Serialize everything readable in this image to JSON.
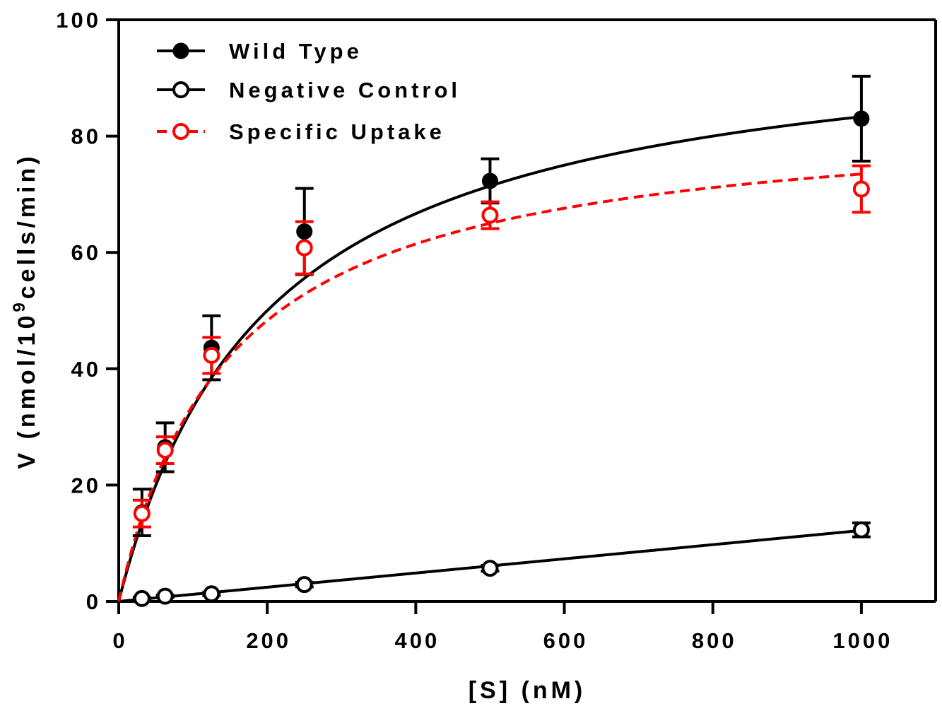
{
  "chart_data": {
    "type": "scatter",
    "title": "",
    "xlabel": "[S] (nM)",
    "ylabel_main": "V (nmol/10",
    "ylabel_sup": "9",
    "ylabel_rest": "cells/min)",
    "xlim": [
      0,
      1100
    ],
    "ylim": [
      0,
      100
    ],
    "xticks": [
      0,
      200,
      400,
      600,
      800,
      1000
    ],
    "yticks": [
      0,
      20,
      40,
      60,
      80,
      100
    ],
    "grid": false,
    "legend_position": "top-left",
    "series": [
      {
        "name": "Wild Type",
        "color": "#000000",
        "marker": "filled-circle",
        "line": "solid",
        "x": [
          31.25,
          62.5,
          125,
          250,
          500,
          1000
        ],
        "y": [
          15.3,
          26.5,
          43.6,
          63.6,
          72.3,
          83.0
        ],
        "error": [
          4.0,
          4.2,
          5.5,
          7.4,
          3.8,
          7.3
        ],
        "fit": {
          "model": "michaelis-menten",
          "vmax": 100,
          "km": 200
        }
      },
      {
        "name": "Negative Control",
        "color": "#000000",
        "marker": "open-circle",
        "line": "solid",
        "x": [
          31.25,
          62.5,
          125,
          250,
          500,
          1000
        ],
        "y": [
          0.5,
          0.9,
          1.3,
          2.9,
          5.7,
          12.3
        ],
        "error": [
          0.2,
          0.2,
          0.3,
          0.4,
          0.5,
          1.2
        ],
        "fit": {
          "model": "linear",
          "slope": 0.0122,
          "intercept": 0
        }
      },
      {
        "name": "Specific Uptake",
        "color": "#ff0000",
        "marker": "open-circle",
        "line": "dashed",
        "x": [
          31.25,
          62.5,
          125,
          250,
          500,
          1000
        ],
        "y": [
          15.1,
          26.0,
          42.3,
          60.8,
          66.4,
          70.9
        ],
        "error": [
          2.3,
          2.3,
          3.1,
          4.5,
          2.3,
          4.0
        ],
        "fit": {
          "model": "michaelis-menten",
          "vmax": 84.5,
          "km": 150
        }
      }
    ]
  }
}
